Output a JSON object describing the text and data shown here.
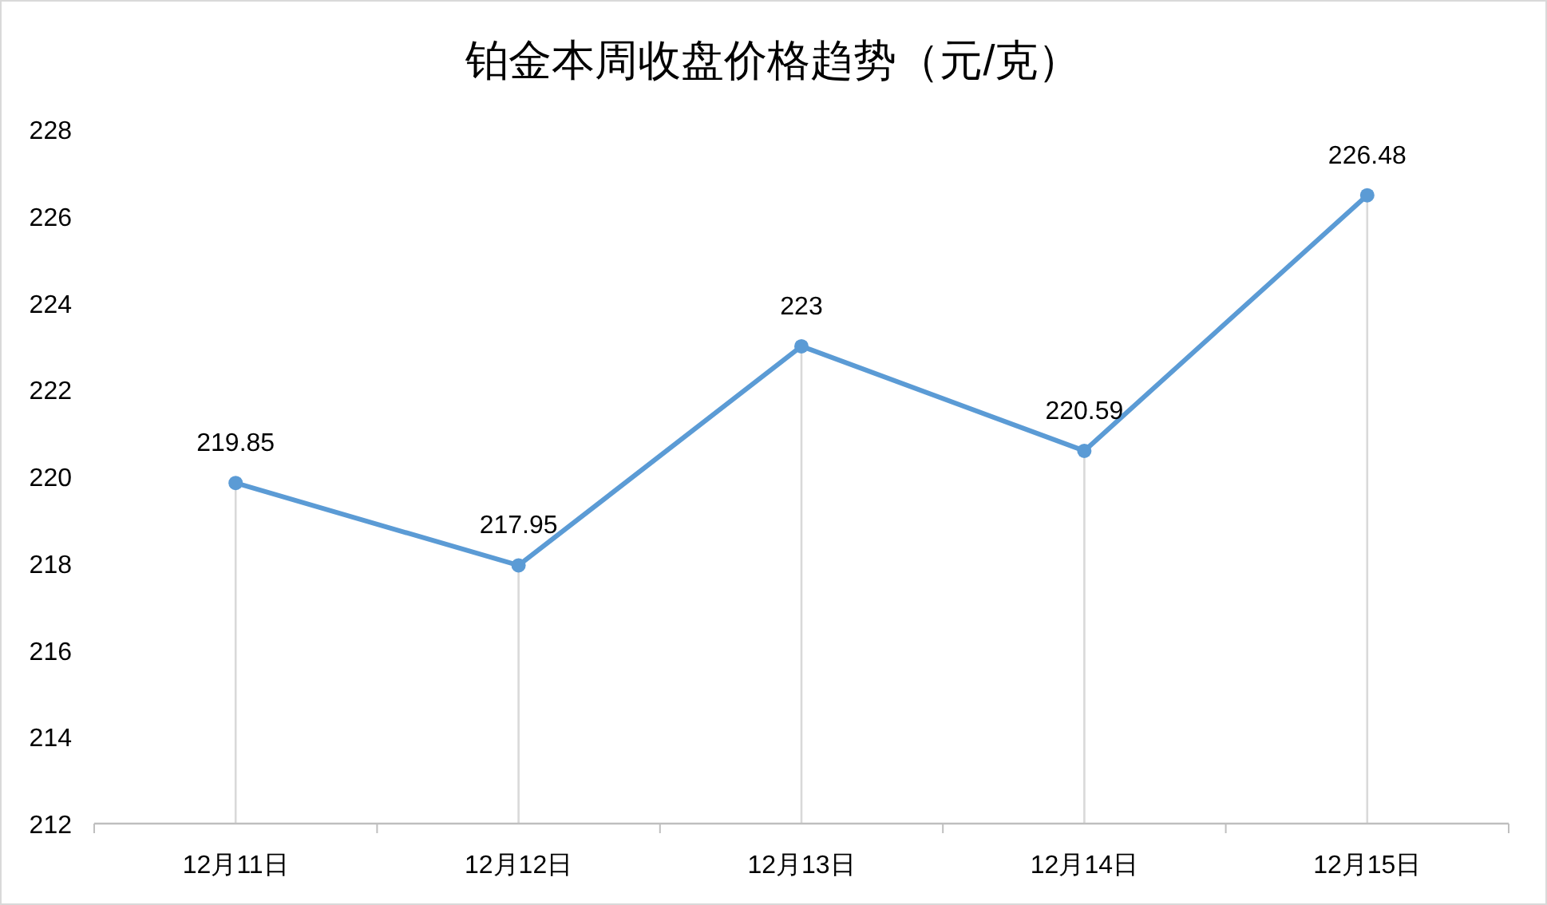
{
  "chart_data": {
    "type": "line",
    "title": "铂金本周收盘价格趋势（元/克）",
    "categories": [
      "12月11日",
      "12月12日",
      "12月13日",
      "12月14日",
      "12月15日"
    ],
    "series": [
      {
        "color": "#5b9bd5",
        "values": [
          219.85,
          217.95,
          223,
          220.59,
          226.48
        ]
      }
    ],
    "ylim": [
      212,
      228
    ],
    "yticks": [
      212,
      214,
      216,
      218,
      220,
      222,
      224,
      226,
      228
    ],
    "grid": false,
    "marker": "circle",
    "line_style": "solid",
    "data_labels": true,
    "ref_lines": [
      {
        "axis": "x",
        "value": "12月11日",
        "color": "#d9d9d9"
      },
      {
        "axis": "x",
        "value": "12月12日",
        "color": "#d9d9d9"
      },
      {
        "axis": "x",
        "value": "12月13日",
        "color": "#d9d9d9"
      },
      {
        "axis": "x",
        "value": "12月14日",
        "color": "#d9d9d9"
      },
      {
        "axis": "x",
        "value": "12月15日",
        "color": "#d9d9d9"
      }
    ]
  }
}
